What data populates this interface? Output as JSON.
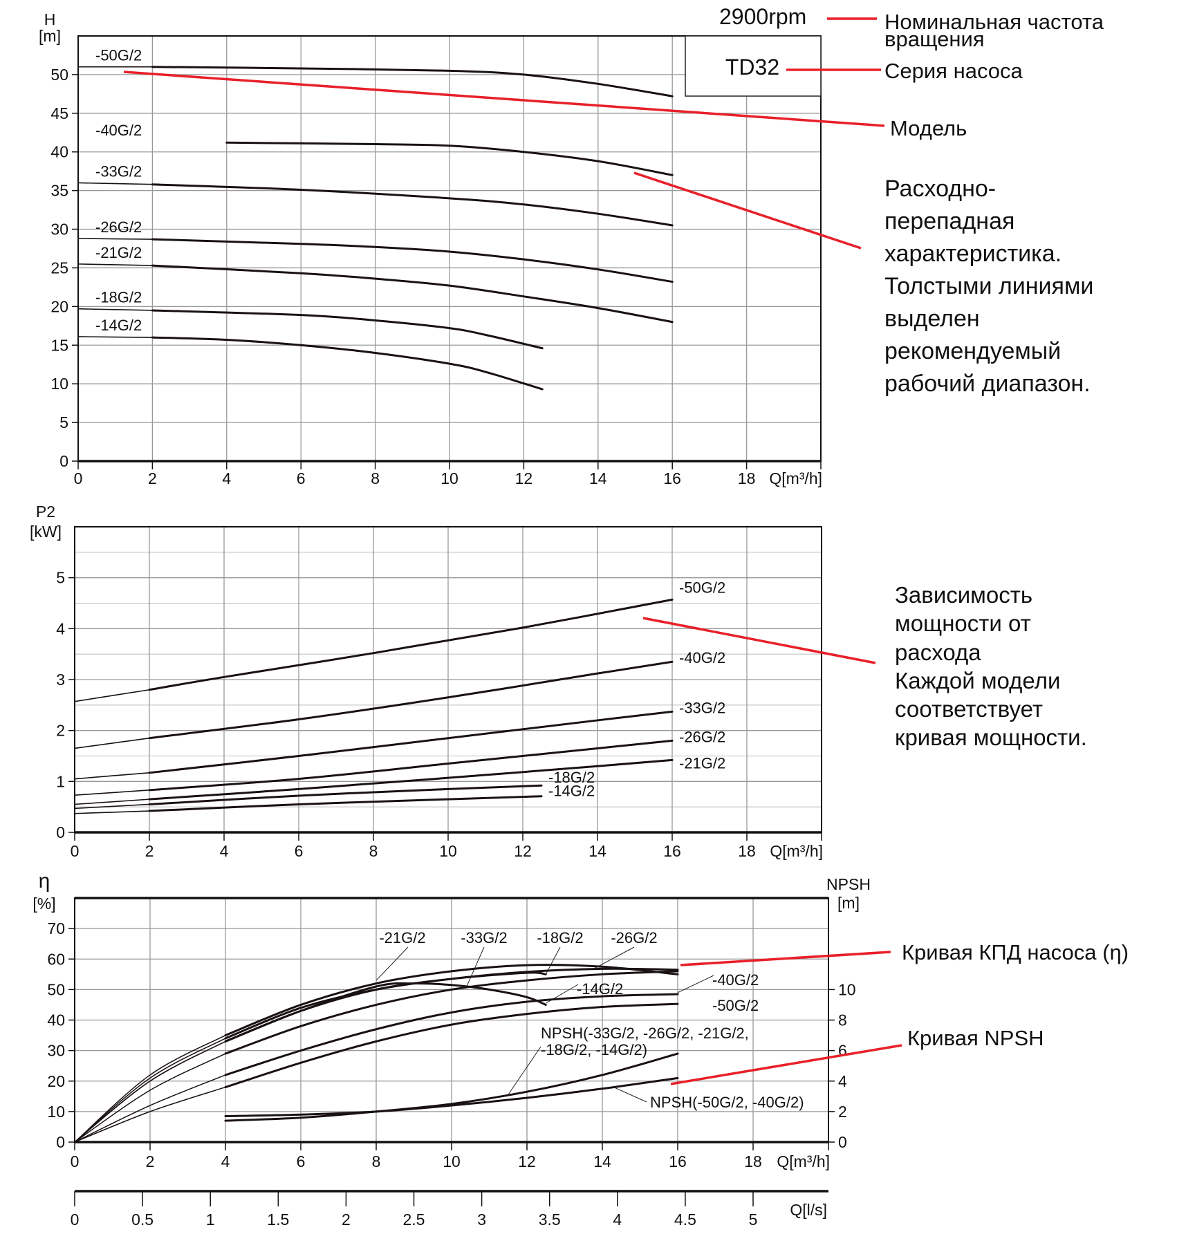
{
  "annotations": {
    "rpm": "2900rpm",
    "rpm_note": [
      "Номинальная частота",
      "вращения"
    ],
    "series_box": "TD32",
    "series_note": "Серия насоса",
    "model_note": "Модель",
    "head_note": [
      "Расходно-",
      "перепадная",
      "характеристика.",
      "Толстыми линиями",
      "выделен",
      "рекомендуемый",
      "рабочий диапазон."
    ],
    "power_note": [
      "Зависимость",
      "мощности от",
      "расхода",
      "Каждой модели",
      "соответствует",
      "кривая мощности."
    ],
    "eff_note": "Кривая КПД насоса (η)",
    "npsh_note": "Кривая NPSH",
    "accent_color": "#e8202a"
  },
  "chart_data": [
    {
      "type": "line",
      "ylabel": [
        "H",
        "[m]"
      ],
      "xlabel": "Q[m³/h]",
      "xlim": [
        0,
        20
      ],
      "ylim": [
        0,
        55
      ],
      "xticks": [
        0,
        2,
        4,
        6,
        8,
        10,
        12,
        14,
        16,
        18
      ],
      "yticks": [
        0,
        5,
        10,
        15,
        20,
        25,
        30,
        35,
        40,
        45,
        50
      ],
      "grid": true,
      "series": [
        {
          "name": "-50G/2",
          "points": [
            [
              0,
              51
            ],
            [
              2,
              51
            ],
            [
              6,
              50.8
            ],
            [
              10,
              50.5
            ],
            [
              12,
              50
            ],
            [
              14,
              48.8
            ],
            [
              16,
              47.2
            ]
          ]
        },
        {
          "name": "-40G/2",
          "points": [
            [
              0,
              41.3
            ],
            [
              4,
              41.2
            ],
            [
              8,
              41
            ],
            [
              10,
              40.8
            ],
            [
              12,
              40
            ],
            [
              14,
              38.8
            ],
            [
              16,
              37
            ]
          ]
        },
        {
          "name": "-33G/2",
          "points": [
            [
              0,
              36
            ],
            [
              2,
              35.8
            ],
            [
              6,
              35.1
            ],
            [
              10,
              34
            ],
            [
              12,
              33.2
            ],
            [
              14,
              32
            ],
            [
              16,
              30.5
            ]
          ]
        },
        {
          "name": "-26G/2",
          "points": [
            [
              0,
              28.8
            ],
            [
              2,
              28.7
            ],
            [
              6,
              28.1
            ],
            [
              8,
              27.7
            ],
            [
              10,
              27.1
            ],
            [
              12,
              26.1
            ],
            [
              14,
              24.8
            ],
            [
              16,
              23.2
            ]
          ]
        },
        {
          "name": "-21G/2",
          "points": [
            [
              0,
              25.5
            ],
            [
              2,
              25.3
            ],
            [
              6,
              24.3
            ],
            [
              8,
              23.6
            ],
            [
              10,
              22.7
            ],
            [
              12,
              21.3
            ],
            [
              14,
              19.8
            ],
            [
              16,
              18
            ]
          ]
        },
        {
          "name": "-18G/2",
          "points": [
            [
              0,
              19.7
            ],
            [
              2,
              19.5
            ],
            [
              6,
              18.9
            ],
            [
              8,
              18.2
            ],
            [
              10,
              17.2
            ],
            [
              11,
              16.3
            ],
            [
              12.5,
              14.6
            ]
          ]
        },
        {
          "name": "-14G/2",
          "points": [
            [
              0,
              16.1
            ],
            [
              2,
              16
            ],
            [
              4,
              15.7
            ],
            [
              6,
              15
            ],
            [
              8,
              14
            ],
            [
              10,
              12.6
            ],
            [
              11,
              11.5
            ],
            [
              12.5,
              9.3
            ]
          ]
        }
      ]
    },
    {
      "type": "line",
      "ylabel": [
        "P2",
        "[kW]"
      ],
      "xlabel": "Q[m³/h]",
      "xlim": [
        0,
        20
      ],
      "ylim": [
        0,
        6
      ],
      "xticks": [
        0,
        2,
        4,
        6,
        8,
        10,
        12,
        14,
        16,
        18
      ],
      "yticks": [
        0,
        1,
        2,
        3,
        4,
        5
      ],
      "grid": true,
      "series": [
        {
          "name": "-50G/2",
          "points": [
            [
              0,
              2.57
            ],
            [
              2,
              2.8
            ],
            [
              4,
              3.05
            ],
            [
              8,
              3.52
            ],
            [
              12,
              4.02
            ],
            [
              16,
              4.57
            ]
          ]
        },
        {
          "name": "-40G/2",
          "points": [
            [
              0,
              1.65
            ],
            [
              2,
              1.85
            ],
            [
              6,
              2.22
            ],
            [
              10,
              2.65
            ],
            [
              14,
              3.12
            ],
            [
              16,
              3.35
            ]
          ]
        },
        {
          "name": "-33G/2",
          "points": [
            [
              0,
              1.05
            ],
            [
              2,
              1.17
            ],
            [
              6,
              1.5
            ],
            [
              10,
              1.85
            ],
            [
              14,
              2.2
            ],
            [
              16,
              2.37
            ]
          ]
        },
        {
          "name": "-26G/2",
          "points": [
            [
              0,
              0.73
            ],
            [
              2,
              0.83
            ],
            [
              6,
              1.05
            ],
            [
              10,
              1.35
            ],
            [
              14,
              1.65
            ],
            [
              16,
              1.8
            ]
          ]
        },
        {
          "name": "-21G/2",
          "points": [
            [
              0,
              0.55
            ],
            [
              2,
              0.65
            ],
            [
              6,
              0.85
            ],
            [
              10,
              1.07
            ],
            [
              14,
              1.3
            ],
            [
              16,
              1.42
            ]
          ]
        },
        {
          "name": "-18G/2",
          "points": [
            [
              0,
              0.47
            ],
            [
              2,
              0.55
            ],
            [
              6,
              0.72
            ],
            [
              10,
              0.85
            ],
            [
              12.5,
              0.92
            ]
          ]
        },
        {
          "name": "-14G/2",
          "points": [
            [
              0,
              0.37
            ],
            [
              2,
              0.42
            ],
            [
              6,
              0.55
            ],
            [
              10,
              0.65
            ],
            [
              12.5,
              0.71
            ]
          ]
        }
      ]
    },
    {
      "type": "line",
      "ylabel": [
        "η",
        "[%]"
      ],
      "y2label": [
        "NPSH",
        "[m]"
      ],
      "xlabel": "Q[m³/h]",
      "x2label": "Q[l/s]",
      "xlim": [
        0,
        20
      ],
      "ylim": [
        0,
        80
      ],
      "y2lim": [
        0,
        16
      ],
      "xticks": [
        0,
        2,
        4,
        6,
        8,
        10,
        12,
        14,
        16,
        18
      ],
      "yticks": [
        0,
        10,
        20,
        30,
        40,
        50,
        60,
        70
      ],
      "y2ticks": [
        0,
        2,
        4,
        6,
        8,
        10
      ],
      "x2ticks": [
        "0",
        "0.5",
        "1",
        "1.5",
        "2",
        "2.5",
        "3",
        "3.5",
        "4",
        "4.5",
        "5"
      ],
      "grid": true,
      "efficiency_series": [
        {
          "name": "-21G/2",
          "points": [
            [
              0,
              0
            ],
            [
              2,
              22
            ],
            [
              4,
              35
            ],
            [
              6,
              45
            ],
            [
              8,
              52
            ],
            [
              10,
              56
            ],
            [
              12,
              58
            ],
            [
              14,
              57.5
            ],
            [
              16,
              55
            ]
          ]
        },
        {
          "name": "-33G/2",
          "points": [
            [
              0,
              0
            ],
            [
              2,
              17
            ],
            [
              4,
              29
            ],
            [
              6,
              38
            ],
            [
              8,
              45
            ],
            [
              10,
              50
            ],
            [
              12,
              53
            ],
            [
              14,
              55
            ],
            [
              16,
              56
            ]
          ]
        },
        {
          "name": "-18G/2",
          "points": [
            [
              0,
              0
            ],
            [
              2,
              21
            ],
            [
              4,
              34
            ],
            [
              6,
              44
            ],
            [
              8,
              50
            ],
            [
              10,
              53.5
            ],
            [
              12,
              55.5
            ],
            [
              12.5,
              55
            ]
          ]
        },
        {
          "name": "-26G/2",
          "points": [
            [
              0,
              0
            ],
            [
              2,
              20
            ],
            [
              4,
              33
            ],
            [
              6,
              43
            ],
            [
              8,
              50
            ],
            [
              10,
              53.5
            ],
            [
              12,
              55.8
            ],
            [
              14,
              56.8
            ],
            [
              16,
              56.5
            ]
          ]
        },
        {
          "name": "-14G/2",
          "points": [
            [
              0,
              0
            ],
            [
              2,
              20
            ],
            [
              4,
              33
            ],
            [
              6,
              43
            ],
            [
              8,
              51
            ],
            [
              9,
              52
            ],
            [
              10,
              51.5
            ],
            [
              11,
              50
            ],
            [
              12,
              47.5
            ],
            [
              12.5,
              45
            ]
          ]
        },
        {
          "name": "-40G/2",
          "points": [
            [
              0,
              0
            ],
            [
              2,
              12
            ],
            [
              4,
              22
            ],
            [
              6,
              30
            ],
            [
              8,
              37
            ],
            [
              10,
              42.5
            ],
            [
              12,
              46
            ],
            [
              14,
              47.8
            ],
            [
              16,
              48.5
            ]
          ]
        },
        {
          "name": "-50G/2",
          "points": [
            [
              0,
              0
            ],
            [
              2,
              10
            ],
            [
              4,
              18
            ],
            [
              6,
              26
            ],
            [
              8,
              33
            ],
            [
              10,
              38.5
            ],
            [
              12,
              42
            ],
            [
              14,
              44.3
            ],
            [
              16,
              45.3
            ]
          ]
        }
      ],
      "npsh_series": [
        {
          "name": [
            "NPSH(-33G/2, -26G/2, -21G/2,",
            "-18G/2, -14G/2)"
          ],
          "points": [
            [
              4,
              1.4
            ],
            [
              6,
              1.6
            ],
            [
              8,
              2
            ],
            [
              10,
              2.5
            ],
            [
              12,
              3.3
            ],
            [
              14,
              4.4
            ],
            [
              16,
              5.8
            ]
          ]
        },
        {
          "name": [
            "NPSH(-50G/2, -40G/2)"
          ],
          "points": [
            [
              4,
              1.7
            ],
            [
              6,
              1.8
            ],
            [
              8,
              2
            ],
            [
              10,
              2.4
            ],
            [
              12,
              2.9
            ],
            [
              14,
              3.5
            ],
            [
              16,
              4.2
            ]
          ]
        }
      ]
    }
  ]
}
